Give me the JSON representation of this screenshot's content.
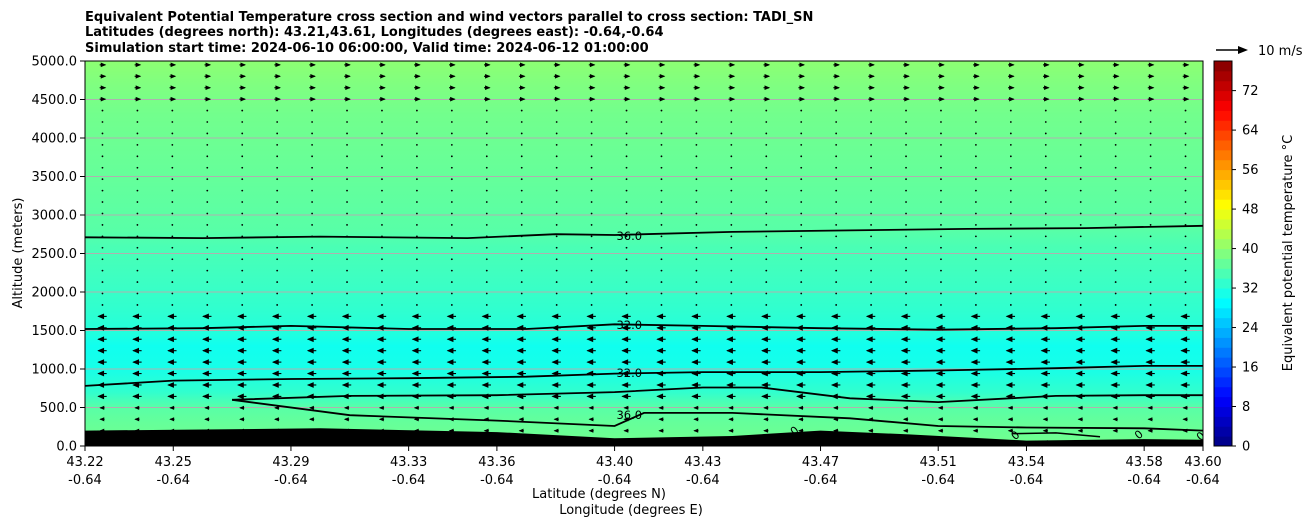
{
  "chart_data": {
    "type": "heatmap",
    "title_lines": [
      "Equivalent Potential Temperature cross section and wind vectors parallel to cross section: TADI_SN",
      "Latitudes (degrees north): 43.21,43.61, Longitudes (degrees east): -0.64,-0.64",
      "Simulation start time: 2024-06-10 06:00:00, Valid time: 2024-06-12 01:00:00"
    ],
    "xlabel_lines": [
      "Latitude (degrees N)",
      "Longitude (degrees E)"
    ],
    "ylabel": "Altitude (meters)",
    "x_ticks": [
      {
        "lat": "43.22",
        "lon": "-0.64"
      },
      {
        "lat": "43.25",
        "lon": "-0.64"
      },
      {
        "lat": "43.29",
        "lon": "-0.64"
      },
      {
        "lat": "43.33",
        "lon": "-0.64"
      },
      {
        "lat": "43.36",
        "lon": "-0.64"
      },
      {
        "lat": "43.40",
        "lon": "-0.64"
      },
      {
        "lat": "43.43",
        "lon": "-0.64"
      },
      {
        "lat": "43.47",
        "lon": "-0.64"
      },
      {
        "lat": "43.51",
        "lon": "-0.64"
      },
      {
        "lat": "43.54",
        "lon": "-0.64"
      },
      {
        "lat": "43.58",
        "lon": "-0.64"
      },
      {
        "lat": "43.60",
        "lon": "-0.64"
      }
    ],
    "x_tick_values": [
      43.22,
      43.25,
      43.29,
      43.33,
      43.36,
      43.4,
      43.43,
      43.47,
      43.51,
      43.54,
      43.58,
      43.6
    ],
    "xlim": [
      43.22,
      43.6
    ],
    "ylim": [
      0,
      5000
    ],
    "y_ticks": [
      "0.0",
      "500.0",
      "1000.0",
      "1500.0",
      "2000.0",
      "2500.0",
      "3000.0",
      "3500.0",
      "4000.0",
      "4500.0",
      "5000.0"
    ],
    "y_tick_values": [
      0,
      500,
      1000,
      1500,
      2000,
      2500,
      3000,
      3500,
      4000,
      4500,
      5000
    ],
    "grid": "horizontal",
    "colorbar": {
      "label": "Equivalent potential temperature $^\\circ$C",
      "range": [
        0,
        78
      ],
      "tick_labels": [
        "0",
        "8",
        "16",
        "24",
        "32",
        "40",
        "48",
        "56",
        "64",
        "72"
      ],
      "tick_values": [
        0,
        8,
        16,
        24,
        32,
        40,
        48,
        56,
        64,
        72
      ],
      "colormap": "jet"
    },
    "quiver_key": "10 m/s",
    "contour_labels": [
      "36.0",
      "32.0",
      "32.0",
      "36.0",
      "0",
      "0",
      "0",
      "0"
    ],
    "contours": [
      {
        "level": 36,
        "label": "36.0",
        "label_at": [
          43.405,
          2730
        ],
        "points": [
          [
            43.22,
            2710
          ],
          [
            43.26,
            2700
          ],
          [
            43.3,
            2720
          ],
          [
            43.35,
            2700
          ],
          [
            43.38,
            2750
          ],
          [
            43.4,
            2740
          ],
          [
            43.44,
            2780
          ],
          [
            43.48,
            2800
          ],
          [
            43.52,
            2820
          ],
          [
            43.56,
            2830
          ],
          [
            43.6,
            2860
          ]
        ]
      },
      {
        "level": 32,
        "label": "32.0",
        "label_at": [
          43.405,
          1570
        ],
        "points": [
          [
            43.22,
            1520
          ],
          [
            43.26,
            1530
          ],
          [
            43.29,
            1560
          ],
          [
            43.33,
            1520
          ],
          [
            43.37,
            1520
          ],
          [
            43.4,
            1580
          ],
          [
            43.43,
            1560
          ],
          [
            43.47,
            1530
          ],
          [
            43.51,
            1510
          ],
          [
            43.55,
            1530
          ],
          [
            43.58,
            1560
          ],
          [
            43.6,
            1560
          ]
        ]
      },
      {
        "level": 32,
        "label": "32.0",
        "label_at": [
          43.405,
          950
        ],
        "points": [
          [
            43.22,
            780
          ],
          [
            43.25,
            850
          ],
          [
            43.29,
            870
          ],
          [
            43.33,
            880
          ],
          [
            43.37,
            900
          ],
          [
            43.4,
            940
          ],
          [
            43.43,
            960
          ],
          [
            43.47,
            960
          ],
          [
            43.51,
            980
          ],
          [
            43.55,
            1010
          ],
          [
            43.58,
            1040
          ],
          [
            43.6,
            1040
          ]
        ]
      },
      {
        "level": 36,
        "label": "36.0",
        "label_at": [
          43.405,
          400
        ],
        "points": [
          [
            43.27,
            600
          ],
          [
            43.31,
            400
          ],
          [
            43.36,
            330
          ],
          [
            43.4,
            260
          ],
          [
            43.41,
            430
          ],
          [
            43.44,
            430
          ],
          [
            43.48,
            360
          ],
          [
            43.51,
            260
          ],
          [
            43.54,
            240
          ],
          [
            43.58,
            230
          ],
          [
            43.6,
            200
          ]
        ]
      },
      {
        "level": 36,
        "label": "",
        "points": [
          [
            43.27,
            600
          ],
          [
            43.31,
            650
          ],
          [
            43.36,
            660
          ],
          [
            43.4,
            700
          ],
          [
            43.43,
            760
          ],
          [
            43.45,
            760
          ],
          [
            43.48,
            620
          ],
          [
            43.51,
            570
          ],
          [
            43.55,
            650
          ],
          [
            43.58,
            660
          ],
          [
            43.6,
            660
          ]
        ]
      }
    ],
    "wind_bands": [
      {
        "alt": [
          0,
          600
        ],
        "u": -3
      },
      {
        "alt": [
          600,
          1800
        ],
        "u": -6
      },
      {
        "alt": [
          1800,
          4400
        ],
        "u": 0.5
      },
      {
        "alt": [
          4400,
          5000
        ],
        "u": 4
      }
    ],
    "theta_e_field": {
      "levels_m": [
        0,
        300,
        500,
        700,
        1000,
        1300,
        1500,
        1800,
        2200,
        2600,
        2800,
        3500,
        4300,
        4700,
        5000
      ],
      "values_C": [
        38,
        37,
        36,
        33,
        31,
        30.5,
        32,
        33,
        34,
        35,
        36,
        37,
        38,
        39,
        40
      ]
    },
    "terrain_m": [
      [
        43.22,
        200
      ],
      [
        43.3,
        230
      ],
      [
        43.36,
        180
      ],
      [
        43.4,
        100
      ],
      [
        43.44,
        130
      ],
      [
        43.47,
        200
      ],
      [
        43.5,
        150
      ],
      [
        43.54,
        70
      ],
      [
        43.58,
        90
      ],
      [
        43.6,
        80
      ]
    ]
  }
}
